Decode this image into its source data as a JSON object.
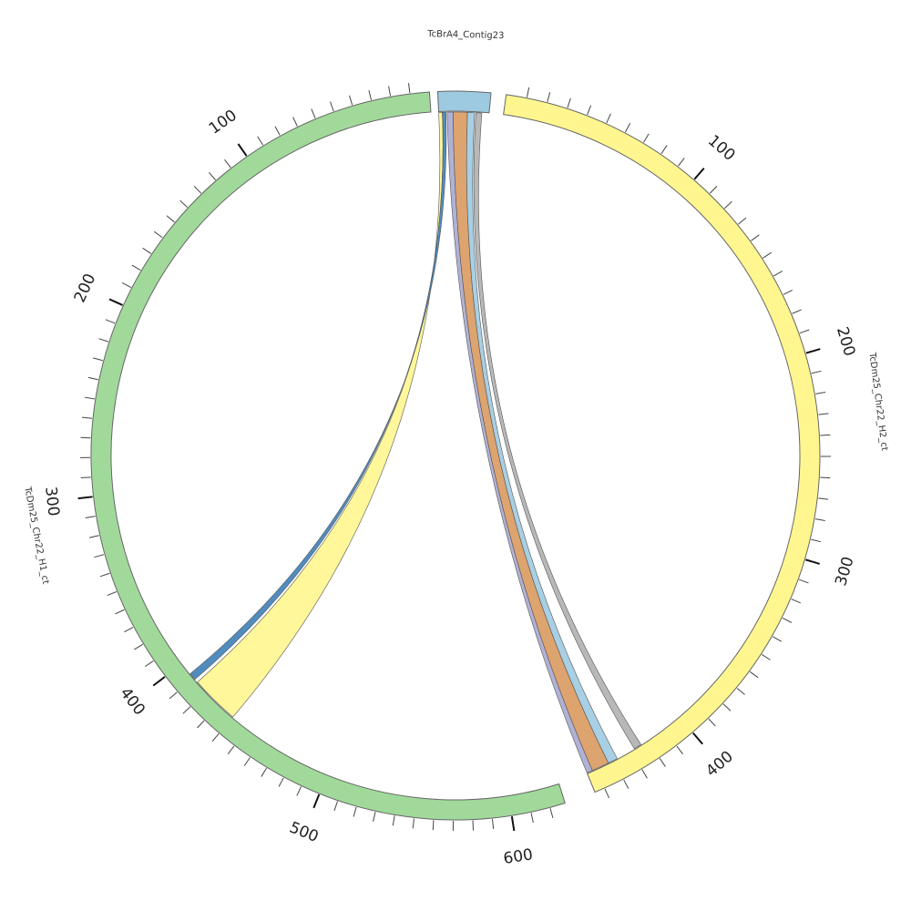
{
  "diagram": {
    "type": "circos",
    "segments": [
      {
        "id": "contig",
        "label": "TcBrA4_Contig23",
        "color": "#9ecae1",
        "length": 42,
        "ticks": []
      },
      {
        "id": "h2",
        "label": "TcDm25_Chr22_H2_ct",
        "color": "#fff68f",
        "length": 455,
        "ticks": [
          {
            "value": 100,
            "label": "100"
          },
          {
            "value": 200,
            "label": "200"
          },
          {
            "value": 300,
            "label": "300"
          },
          {
            "value": 400,
            "label": "400"
          }
        ]
      },
      {
        "id": "h1",
        "label": "TcDm25_Chr22_H1_ct",
        "color": "#a1d99b",
        "length": 628,
        "ticks": [
          {
            "value": 100,
            "label": "100"
          },
          {
            "value": 200,
            "label": "200"
          },
          {
            "value": 300,
            "label": "300"
          },
          {
            "value": 400,
            "label": "400"
          },
          {
            "value": 500,
            "label": "500"
          },
          {
            "value": 600,
            "label": "600"
          }
        ]
      }
    ],
    "links": [
      {
        "name": "link-contig-to-h1-yellow",
        "from": "contig",
        "from_range": [
          0,
          3
        ],
        "to": "h1",
        "to_range": [
          413,
          440
        ],
        "color": "#fff68f"
      },
      {
        "name": "link-contig-to-h1-blue",
        "from": "contig",
        "from_range": [
          3,
          6
        ],
        "to": "h1",
        "to_range": [
          407,
          411
        ],
        "color": "#3e80b8"
      },
      {
        "name": "link-contig-to-h2-purple",
        "from": "contig",
        "from_range": [
          7,
          12
        ],
        "to": "h2",
        "to_range": [
          452,
          455
        ],
        "color": "#a8a8d0"
      },
      {
        "name": "link-contig-to-h2-orange",
        "from": "contig",
        "from_range": [
          12,
          24
        ],
        "to": "h2",
        "to_range": [
          443,
          452
        ],
        "color": "#d99a5f"
      },
      {
        "name": "link-contig-to-h2-lightblue",
        "from": "contig",
        "from_range": [
          24,
          30
        ],
        "to": "h2",
        "to_range": [
          438,
          443
        ],
        "color": "#9ecae1"
      },
      {
        "name": "link-contig-to-h2-gray",
        "from": "contig",
        "from_range": [
          31,
          36
        ],
        "to": "h2",
        "to_range": [
          424,
          428
        ],
        "color": "#b0b0b0"
      }
    ]
  }
}
